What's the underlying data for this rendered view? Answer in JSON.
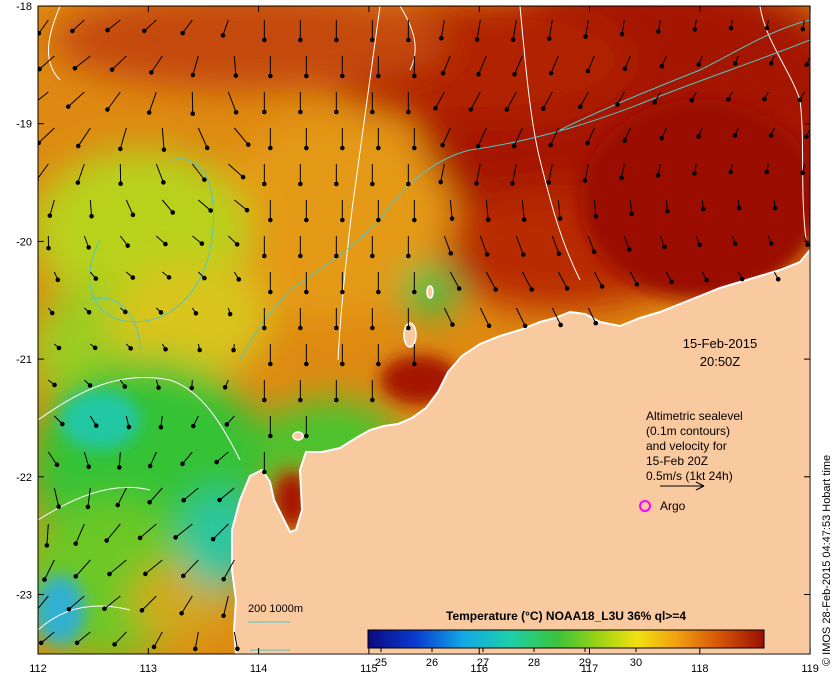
{
  "map": {
    "date_label": "15-Feb-2015",
    "time_label": "20:50Z",
    "legend_lines": [
      "Altimetric sealevel",
      "(0.1m contours)",
      "and velocity for",
      "15-Feb 20Z",
      "0.5m/s (1kt 24h)"
    ],
    "argo_label": "Argo",
    "depth_label": "200  1000m",
    "colorbar_title": "Temperature (°C) NOAA18_L3U 36% ql>=4",
    "colorbar_ticks": [
      "25",
      "26",
      "27",
      "28",
      "29",
      "30"
    ],
    "side_credit": "© IMOS 28-Feb-2015 04:47:53 Hobart time",
    "lat_ticks": [
      "-18",
      "-19",
      "-20",
      "-21",
      "-22",
      "-23"
    ],
    "lon_ticks": [
      "112",
      "113",
      "114",
      "115",
      "116",
      "117",
      "118",
      "119"
    ],
    "colors": {
      "land": "#f9c9a0",
      "warm": "#a51200",
      "hot": "#c33a05",
      "orange": "#de8a12",
      "yellow": "#f2c218",
      "green": "#4ec42a",
      "teal": "#21c7a4",
      "argo": "#ff00ff",
      "contour": "#50c8c8"
    }
  }
}
